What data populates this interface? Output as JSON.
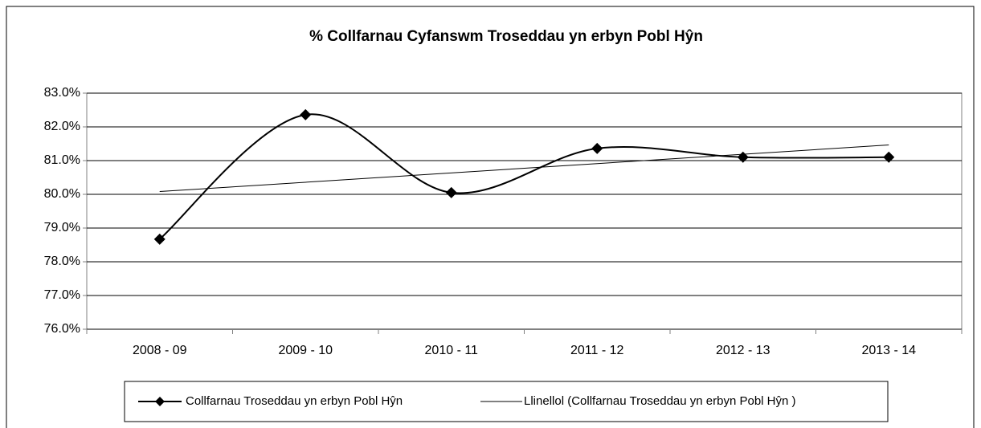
{
  "chart_data": {
    "type": "line",
    "title": "% Collfarnau Cyfanswm Troseddau yn erbyn Pobl Hŷn",
    "categories": [
      "2008 - 09",
      "2009 - 10",
      "2010 - 11",
      "2011 - 12",
      "2012 - 13",
      "2013 - 14"
    ],
    "series": [
      {
        "name": "Collfarnau Troseddau yn erbyn Pobl Hŷn",
        "color": "#000000",
        "values": [
          78.67,
          82.36,
          80.05,
          81.36,
          81.1,
          81.1
        ]
      }
    ],
    "trendline": {
      "name": "Llinellol (Collfarnau  Troseddau yn erbyn Pobl Hŷn )",
      "color": "#000000"
    },
    "ylim": [
      76,
      83
    ],
    "yticks": [
      {
        "value": 76,
        "label": "76.0%"
      },
      {
        "value": 77,
        "label": "77.0%"
      },
      {
        "value": 78,
        "label": "78.0%"
      },
      {
        "value": 79,
        "label": "79.0%"
      },
      {
        "value": 80,
        "label": "80.0%"
      },
      {
        "value": 81,
        "label": "81.0%"
      },
      {
        "value": 82,
        "label": "82.0%"
      },
      {
        "value": 83,
        "label": "83.0%"
      }
    ],
    "grid": true,
    "smooth": true,
    "legend": "bottom"
  }
}
